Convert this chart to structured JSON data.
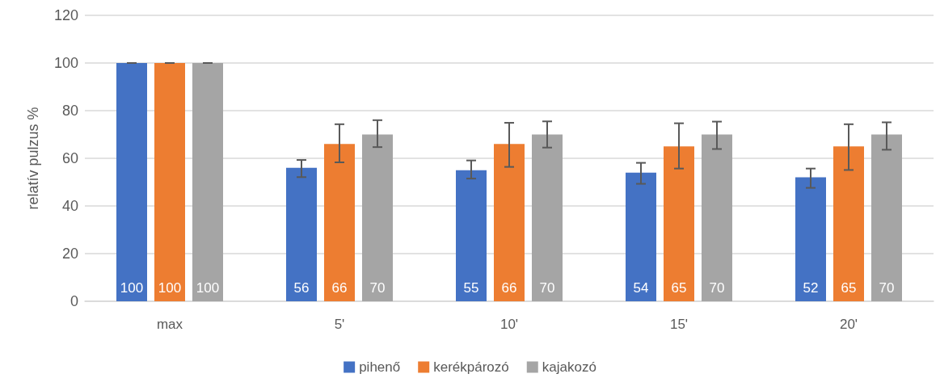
{
  "chart_data": {
    "type": "bar",
    "ylabel": "relatív pulzus %",
    "categories": [
      "max",
      "5'",
      "10'",
      "15'",
      "20'"
    ],
    "series": [
      {
        "name": "pihenő",
        "color": "#4472c4",
        "values": [
          100,
          56,
          55,
          54,
          52
        ],
        "errors": [
          [
            100,
            100
          ],
          [
            52.1,
            59.3
          ],
          [
            51.5,
            59.1
          ],
          [
            49.3,
            58.1
          ],
          [
            47.6,
            55.7
          ]
        ]
      },
      {
        "name": "kerékpározó",
        "color": "#ed7d31",
        "values": [
          100,
          66,
          66,
          65,
          65
        ],
        "errors": [
          [
            100,
            100
          ],
          [
            58.3,
            74.3
          ],
          [
            56.4,
            74.9
          ],
          [
            55.7,
            74.7
          ],
          [
            55.1,
            74.3
          ]
        ]
      },
      {
        "name": "kajakozó",
        "color": "#a5a5a5",
        "values": [
          100,
          70,
          70,
          70,
          70
        ],
        "errors": [
          [
            100,
            100
          ],
          [
            64.7,
            76.0
          ],
          [
            64.5,
            75.5
          ],
          [
            63.9,
            75.4
          ],
          [
            63.6,
            75.1
          ]
        ]
      }
    ],
    "ylim": [
      0,
      120
    ],
    "yticks": [
      0,
      20,
      40,
      60,
      80,
      100,
      120
    ],
    "grid": "y",
    "legend": "bottom",
    "data_labels": true
  }
}
